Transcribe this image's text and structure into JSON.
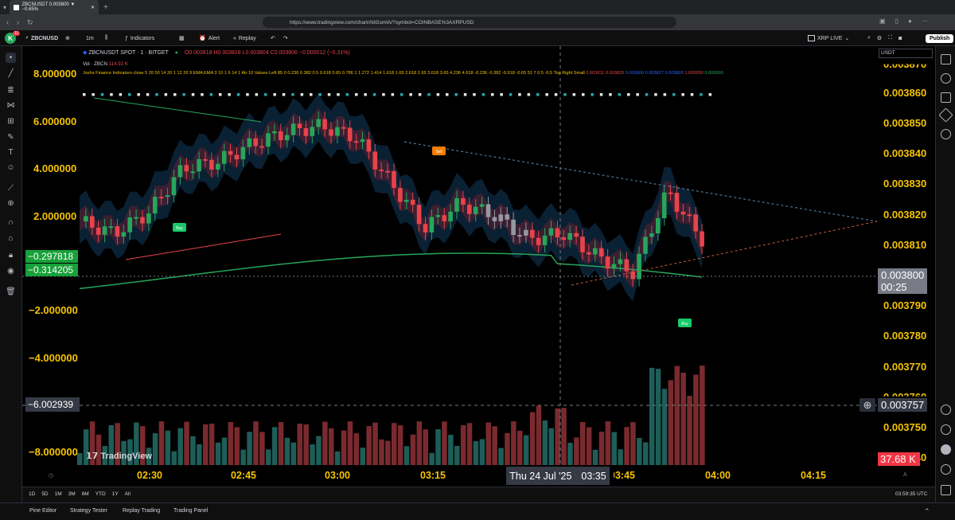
{
  "browser": {
    "tab_title": "ZBCNUSDT 0.003800 ▼ −0.65%",
    "url": "https://www.tradingview.com/chart/AttGsmlA/?symbol=COINBASE%3AXRPUSD"
  },
  "toolbar": {
    "symbol": "ZBCNUSD",
    "interval": "1m",
    "indicators": "Indicators",
    "alert": "Alert",
    "replay": "Replay",
    "live_label": "XRP LIVE",
    "publish": "Publish",
    "avatar_badge": "11",
    "avatar_letter": "K"
  },
  "legend": {
    "title": "ZBCNUSDT SPOT · 1 · BITGET",
    "ohlc": "O0.003818 H0.003818 L0.003804 C0.003806 −0.000012 (−0.31%)",
    "vol": "Vol · ZBCN",
    "vol_value": "114.92 K",
    "indicator": "Joshs Finance Indicators close 5 20 50 14 20 1 12 26 9 EMA EMA 3 10 1 6 14 1 Atr 10 Values Left 85 0 0.236 0.382 0.5 0.618 0.65 0.786 1 1.272 1.414 1.618 1.65 2.618 2.65 3.618 3.65 4.236 4.618 -0.236 -0.382 -0.618 -0.65 51 7 0.5 -0.5 Top Right Small",
    "ind_v1": "0.003811",
    "ind_v2": "0.003825",
    "ind_v3": "0.000000",
    "ind_v4": "0.003827",
    "ind_v5": "0.003809",
    "ind_v6": "1.000000",
    "ind_v7": "0.000000"
  },
  "left_axis": [
    "8.000000",
    "6.000000",
    "4.000000",
    "2.000000",
    "−2.000000",
    "−4.000000",
    "−8.000000"
  ],
  "left_badges": {
    "a": "−0.297818",
    "b": "−0.314205",
    "c": "−6.002939"
  },
  "right_axis": [
    "0.003870",
    "0.003860",
    "0.003850",
    "0.003840",
    "0.003830",
    "0.003820",
    "0.003810",
    "0.003790",
    "0.003780",
    "0.003770",
    "0.003760",
    "0.003750",
    "0.003740"
  ],
  "right_badges": {
    "price": "0.003800",
    "countdown": "00:25",
    "crosshair": "0.003757",
    "volume": "37.68 K",
    "currency": "USDT"
  },
  "time_axis": [
    "02:30",
    "02:45",
    "03:00",
    "03:15",
    "03:45",
    "04:00",
    "04:15"
  ],
  "crosshair_time": {
    "date": "Thu 24 Jul '25",
    "time": "03:35"
  },
  "signals": {
    "sell": "Sell",
    "buy": "Buy"
  },
  "ranges": [
    "1D",
    "5D",
    "1M",
    "3M",
    "6M",
    "YTD",
    "1Y",
    "All"
  ],
  "clock": "03:59:35 UTC",
  "bottom_tabs": [
    "Pine Editor",
    "Strategy Tester",
    "Replay Trading",
    "Trading Panel"
  ],
  "watermark": "TradingView",
  "colors": {
    "up": "#26a65b",
    "down": "#e8434b",
    "gray": "#9598a1",
    "axis": "#f5c400"
  }
}
